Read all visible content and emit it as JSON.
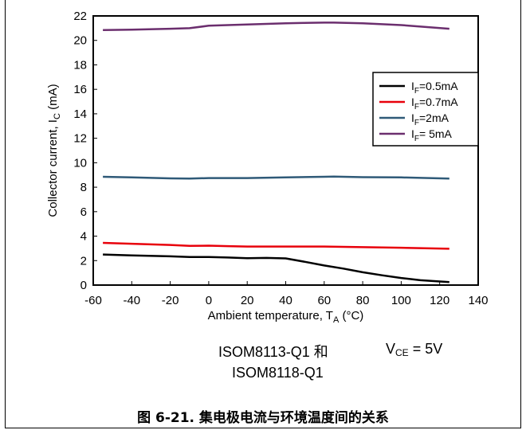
{
  "chart_data": {
    "type": "line",
    "title": "",
    "xlabel_main": "Ambient temperature, T",
    "xlabel_sub": "A",
    "xlabel_unit": " (°C)",
    "ylabel_main": "Collector current, I",
    "ylabel_sub": "C",
    "ylabel_unit": " (mA)",
    "xlim": [
      -60,
      140
    ],
    "ylim": [
      0,
      22
    ],
    "xticks": [
      -60,
      -40,
      -20,
      0,
      20,
      40,
      60,
      80,
      100,
      120,
      140
    ],
    "yticks": [
      0,
      2,
      4,
      6,
      8,
      10,
      12,
      14,
      16,
      18,
      20,
      22
    ],
    "grid": false,
    "legend_position": "right-middle",
    "series": [
      {
        "name_main": "I",
        "name_sub": "F",
        "name_rest": "=0.5mA",
        "color": "#000000",
        "x": [
          -55,
          -40,
          -20,
          -10,
          0,
          10,
          20,
          30,
          40,
          50,
          60,
          70,
          80,
          90,
          100,
          110,
          125
        ],
        "y": [
          2.5,
          2.42,
          2.35,
          2.3,
          2.3,
          2.25,
          2.2,
          2.22,
          2.18,
          1.9,
          1.6,
          1.35,
          1.05,
          0.8,
          0.58,
          0.4,
          0.25
        ]
      },
      {
        "name_main": "I",
        "name_sub": "F",
        "name_rest": "=0.7mA",
        "color": "#e8000b",
        "x": [
          -55,
          -40,
          -20,
          -10,
          0,
          10,
          20,
          40,
          60,
          80,
          100,
          125
        ],
        "y": [
          3.45,
          3.38,
          3.28,
          3.2,
          3.22,
          3.18,
          3.15,
          3.15,
          3.15,
          3.1,
          3.05,
          2.97
        ]
      },
      {
        "name_main": "I",
        "name_sub": "F",
        "name_rest": "=2mA",
        "color": "#2f5a78",
        "x": [
          -55,
          -40,
          -20,
          -10,
          0,
          20,
          40,
          60,
          65,
          80,
          100,
          125
        ],
        "y": [
          8.85,
          8.8,
          8.72,
          8.7,
          8.75,
          8.75,
          8.8,
          8.85,
          8.87,
          8.82,
          8.8,
          8.7
        ]
      },
      {
        "name_main": "I",
        "name_sub": "F",
        "name_rest": "= 5mA",
        "color": "#6b2e6e",
        "x": [
          -55,
          -40,
          -20,
          -10,
          0,
          10,
          20,
          30,
          40,
          50,
          60,
          65,
          80,
          100,
          125
        ],
        "y": [
          20.85,
          20.88,
          20.95,
          21.0,
          21.2,
          21.25,
          21.3,
          21.35,
          21.4,
          21.43,
          21.45,
          21.45,
          21.4,
          21.25,
          20.95
        ]
      }
    ]
  },
  "notes": {
    "device_line1": "ISOM8113-Q1 和",
    "device_line2": "ISOM8118-Q1",
    "vce_main": "V",
    "vce_sub": "CE",
    "vce_rest": " = 5V"
  },
  "caption": "图 6-21. 集电极电流与环境温度间的关系"
}
